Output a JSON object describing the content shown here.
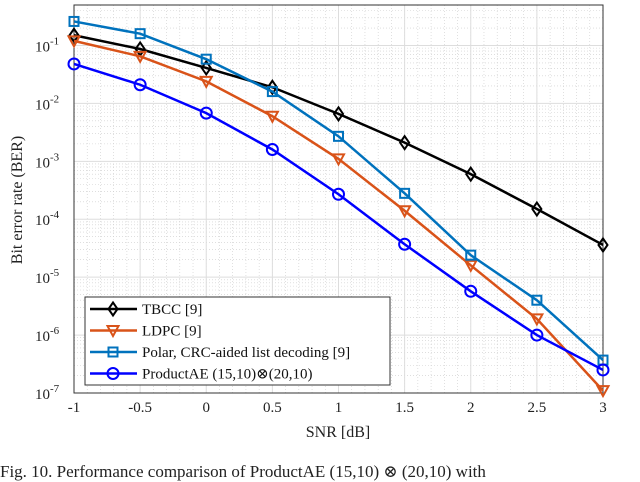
{
  "chart_data": {
    "type": "line",
    "title": "",
    "xlabel": "SNR [dB]",
    "ylabel": "Bit error rate (BER)",
    "x": [
      -1,
      -0.5,
      0,
      0.5,
      1,
      1.5,
      2,
      2.5,
      3
    ],
    "xlim": [
      -1,
      3
    ],
    "ylim": [
      1e-07,
      0.5
    ],
    "yscale": "log",
    "grid": true,
    "minor_grid": true,
    "legend_position": "bottom-left",
    "xticks": [
      "-1",
      "-0.5",
      "0",
      "0.5",
      "1",
      "1.5",
      "2",
      "2.5",
      "3"
    ],
    "yticks": [
      {
        "value": 0.1,
        "mant": "10",
        "exp": "-1"
      },
      {
        "value": 0.01,
        "mant": "10",
        "exp": "-2"
      },
      {
        "value": 0.001,
        "mant": "10",
        "exp": "-3"
      },
      {
        "value": 0.0001,
        "mant": "10",
        "exp": "-4"
      },
      {
        "value": 1e-05,
        "mant": "10",
        "exp": "-5"
      },
      {
        "value": 1e-06,
        "mant": "10",
        "exp": "-6"
      },
      {
        "value": 1e-07,
        "mant": "10",
        "exp": "-7"
      }
    ],
    "series": [
      {
        "name": "TBCC [9]",
        "color": "#000000",
        "marker": "diamond",
        "values": [
          0.15,
          0.087,
          0.041,
          0.019,
          0.0066,
          0.0021,
          0.0006,
          0.00015,
          3.6e-05
        ]
      },
      {
        "name": "LDPC [9]",
        "color": "#D95319",
        "marker": "triangle-down",
        "values": [
          0.12,
          0.065,
          0.024,
          0.006,
          0.0011,
          0.00014,
          1.6e-05,
          1.9e-06,
          1.1e-07
        ]
      },
      {
        "name": "Polar, CRC-aided list decoding [9]",
        "color": "#0072BD",
        "marker": "square",
        "values": [
          0.26,
          0.16,
          0.058,
          0.016,
          0.0027,
          0.00028,
          2.4e-05,
          4e-06,
          3.7e-07
        ]
      },
      {
        "name": "ProductAE (15,10)⊗(20,10)",
        "color": "#0000FF",
        "marker": "circle",
        "values": [
          0.048,
          0.021,
          0.0068,
          0.0016,
          0.00027,
          3.7e-05,
          5.7e-06,
          1e-06,
          2.5e-07
        ]
      }
    ]
  },
  "caption": "Fig. 10.   Performance comparison of ProductAE (15,10) ⊗ (20,10) with"
}
